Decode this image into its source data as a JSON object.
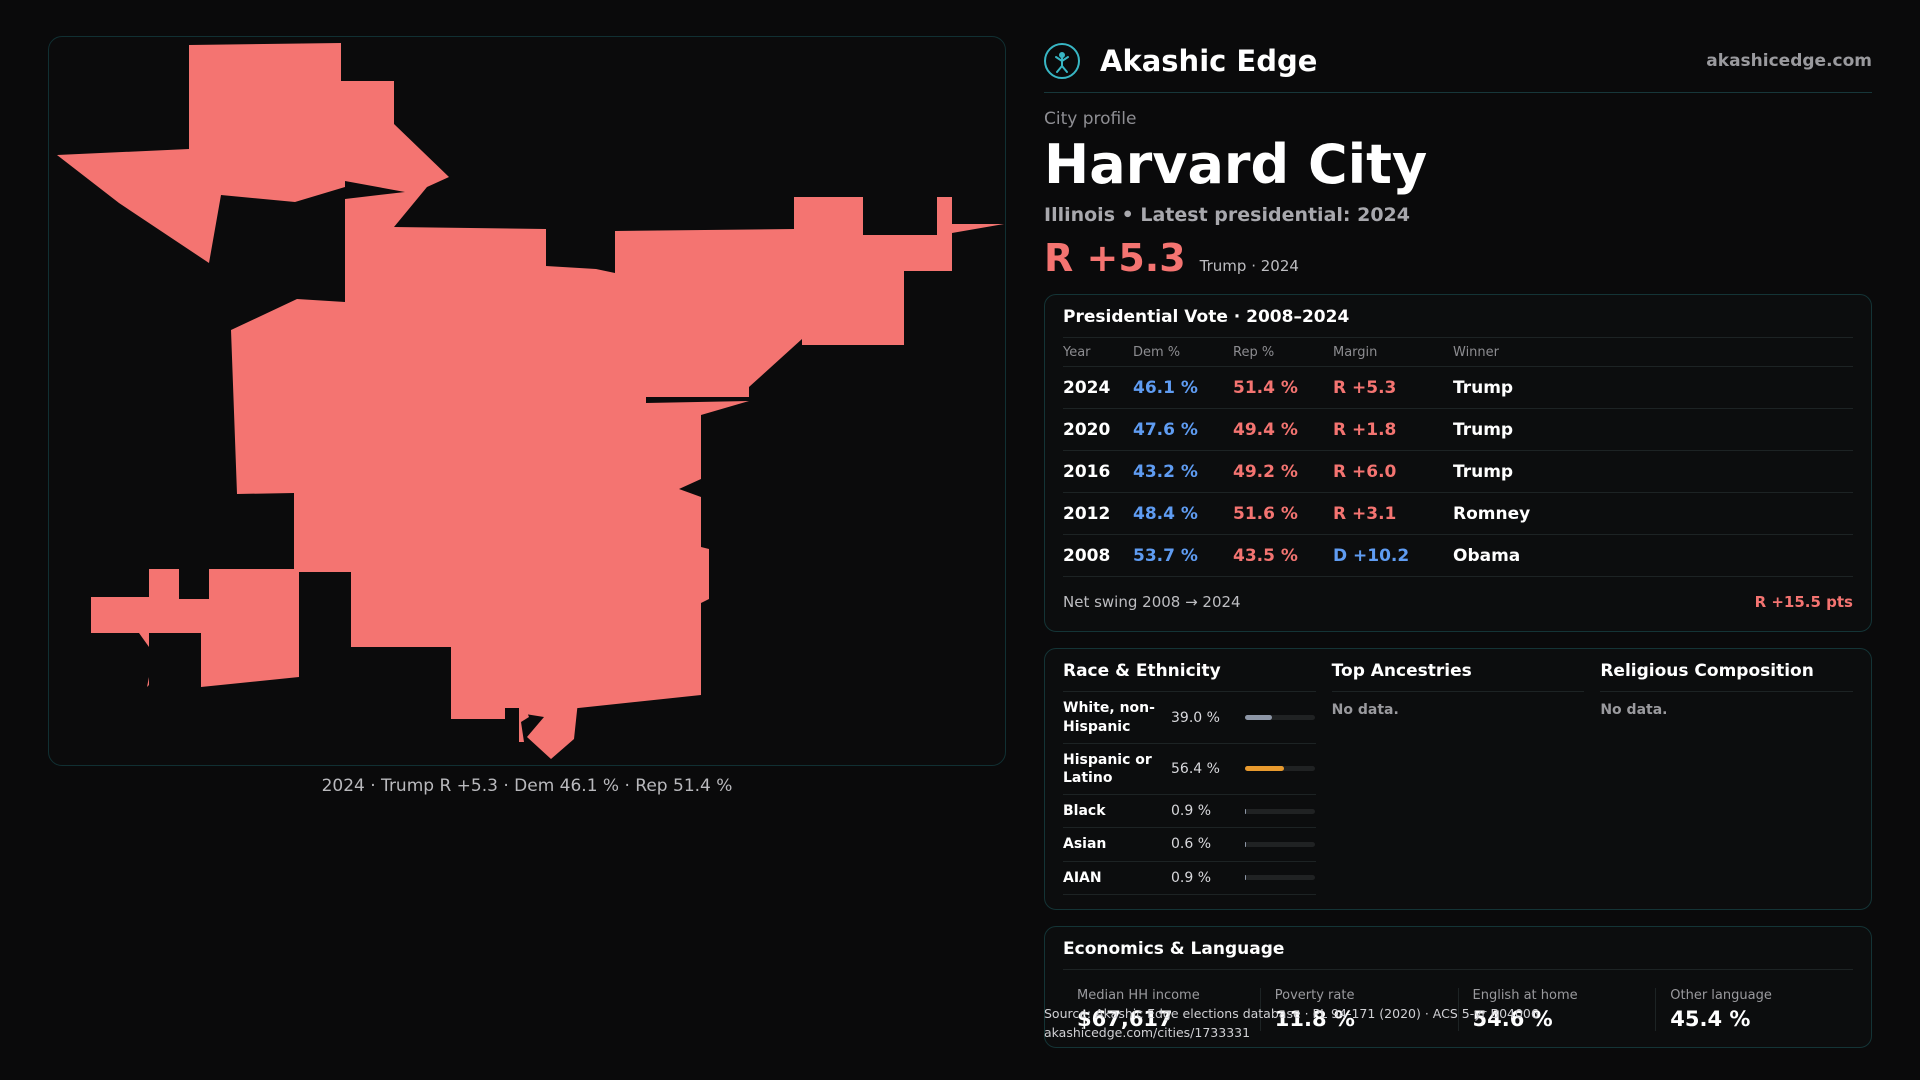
{
  "map": {
    "caption": "2024 · Trump R +5.3 · Dem 46.1 % · Rep 51.4 %",
    "fill_color": "#f47471"
  },
  "brand": {
    "name": "Akashic Edge",
    "domain": "akashicedge.com",
    "logo_icon": "atom-figure-icon"
  },
  "profile": {
    "eyebrow": "City profile",
    "name": "Harvard City",
    "subtitle": "Illinois • Latest presidential: 2024",
    "margin": "R +5.3",
    "margin_note": "Trump · 2024"
  },
  "presidential": {
    "title": "Presidential Vote · 2008–2024",
    "headers": {
      "year": "Year",
      "dem": "Dem %",
      "rep": "Rep %",
      "margin": "Margin",
      "winner": "Winner"
    },
    "rows": [
      {
        "year": "2024",
        "dem": "46.1 %",
        "rep": "51.4 %",
        "margin": "R +5.3",
        "party": "R",
        "winner": "Trump"
      },
      {
        "year": "2020",
        "dem": "47.6 %",
        "rep": "49.4 %",
        "margin": "R +1.8",
        "party": "R",
        "winner": "Trump"
      },
      {
        "year": "2016",
        "dem": "43.2 %",
        "rep": "49.2 %",
        "margin": "R +6.0",
        "party": "R",
        "winner": "Trump"
      },
      {
        "year": "2012",
        "dem": "48.4 %",
        "rep": "51.6 %",
        "margin": "R +3.1",
        "party": "R",
        "winner": "Romney"
      },
      {
        "year": "2008",
        "dem": "53.7 %",
        "rep": "43.5 %",
        "margin": "D +10.2",
        "party": "D",
        "winner": "Obama"
      }
    ],
    "swing_label": "Net swing 2008 → 2024",
    "swing_value": "R +15.5 pts"
  },
  "race": {
    "title": "Race & Ethnicity",
    "rows": [
      {
        "label": "White, non-Hispanic",
        "value": "39.0 %",
        "pct": 39.0,
        "color": "#8d96a6"
      },
      {
        "label": "Hispanic or Latino",
        "value": "56.4 %",
        "pct": 56.4,
        "color": "#e89a2e"
      },
      {
        "label": "Black",
        "value": "0.9 %",
        "pct": 0.9,
        "color": "#8d96a6"
      },
      {
        "label": "Asian",
        "value": "0.6 %",
        "pct": 0.6,
        "color": "#8d96a6"
      },
      {
        "label": "AIAN",
        "value": "0.9 %",
        "pct": 0.9,
        "color": "#8d96a6"
      }
    ]
  },
  "ancestries": {
    "title": "Top Ancestries",
    "empty": "No data."
  },
  "religion": {
    "title": "Religious Composition",
    "empty": "No data."
  },
  "economics": {
    "title": "Economics & Language",
    "items": [
      {
        "label": "Median HH income",
        "value": "$67,617"
      },
      {
        "label": "Poverty rate",
        "value": "11.8 %"
      },
      {
        "label": "English at home",
        "value": "54.6 %"
      },
      {
        "label": "Other language",
        "value": "45.4 %"
      }
    ]
  },
  "source": {
    "line1": "Source: Akashic Edge elections database · PL 94-171 (2020) · ACS 5-yr B04006",
    "line2": "akashicedge.com/cities/1733331"
  }
}
